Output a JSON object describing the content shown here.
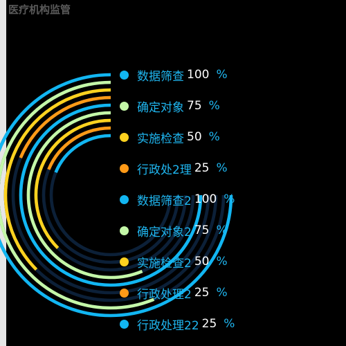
{
  "page": {
    "title": "医疗机构监管"
  },
  "colors": {
    "background": "#000000",
    "track": "#0c2038",
    "text_name": "#1fb6f0",
    "text_value": "#ffffff"
  },
  "chart_data": {
    "type": "radial-bar",
    "max": 100,
    "unit": "%",
    "series": [
      {
        "name": "数据筛查",
        "value": 100,
        "color": "#12b6f2"
      },
      {
        "name": "确定对象",
        "value": 75,
        "color": "#c4f7a8"
      },
      {
        "name": "实施检查",
        "value": 50,
        "color": "#ffd21f"
      },
      {
        "name": "行政处2理",
        "value": 25,
        "color": "#ff9a17"
      },
      {
        "name": "数据筛查2",
        "value": 100,
        "color": "#12b6f2"
      },
      {
        "name": "确定对象2",
        "value": 75,
        "color": "#c4f7a8"
      },
      {
        "name": "实施检查2",
        "value": 50,
        "color": "#ffd21f"
      },
      {
        "name": "行政处理2",
        "value": 25,
        "color": "#ff9a17"
      },
      {
        "name": "行政处理22",
        "value": 25,
        "color": "#12b6f2"
      }
    ]
  }
}
